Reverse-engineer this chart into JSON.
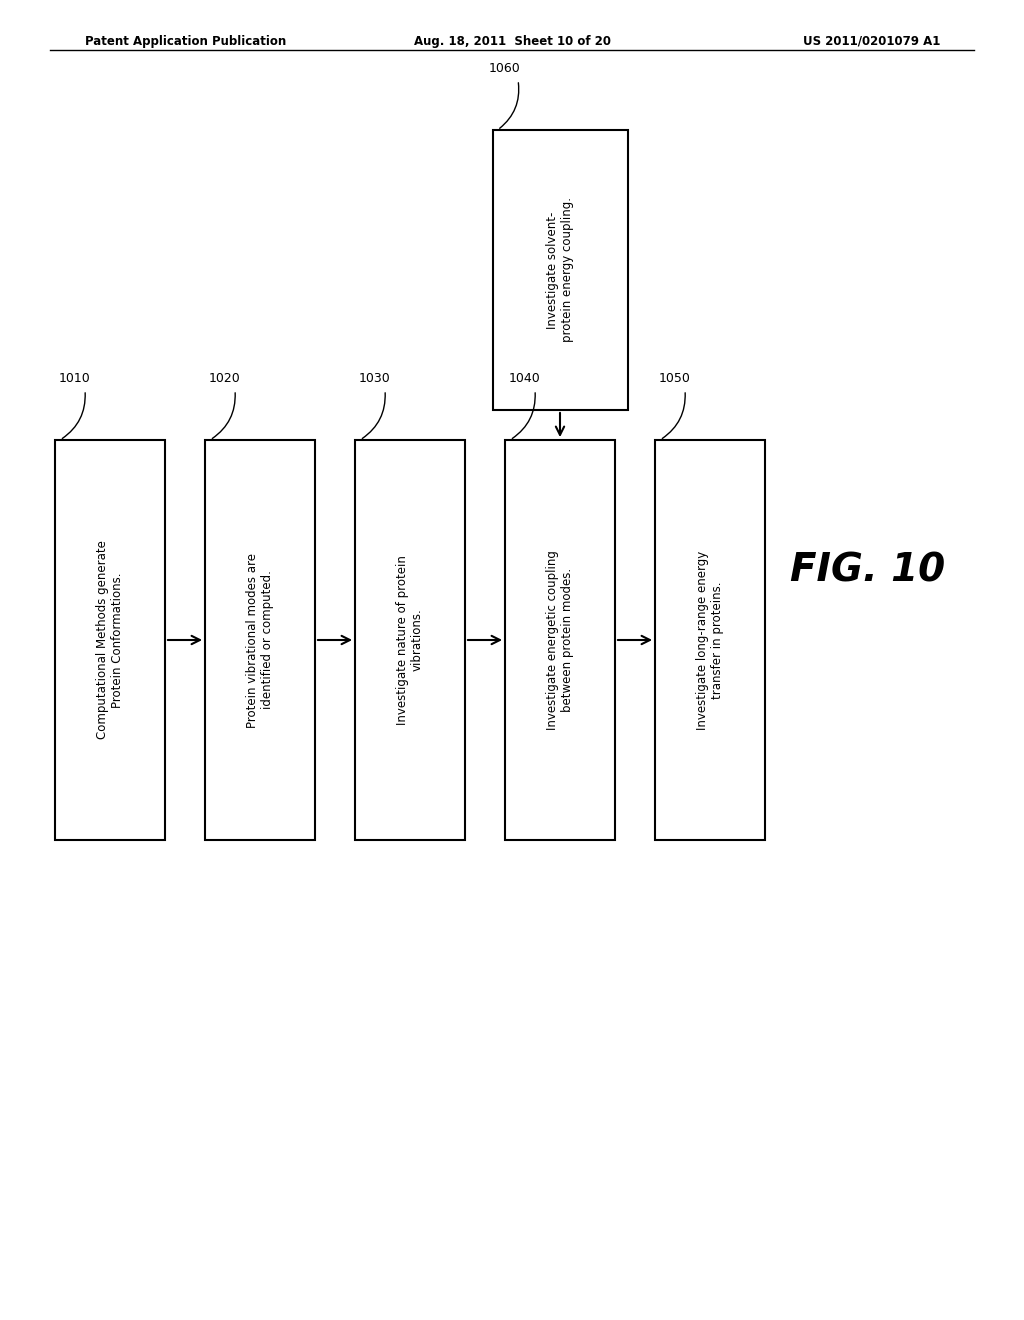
{
  "title_left": "Patent Application Publication",
  "title_mid": "Aug. 18, 2011  Sheet 10 of 20",
  "title_right": "US 2011/0201079 A1",
  "fig_label": "FIG. 10",
  "background_color": "#ffffff",
  "box_edge_color": "#000000",
  "box_face_color": "#ffffff",
  "text_color": "#000000",
  "main_boxes": [
    {
      "id": "1010",
      "label": "1010",
      "text": "Computational Methods generate\nProtein Conformations."
    },
    {
      "id": "1020",
      "label": "1020",
      "text": "Protein vibrational modes are\nidentified or computed."
    },
    {
      "id": "1030",
      "label": "1030",
      "text": "Investigate nature of protein\nvibrations."
    },
    {
      "id": "1040",
      "label": "1040",
      "text": "Investigate energetic coupling\nbetween protein modes."
    },
    {
      "id": "1050",
      "label": "1050",
      "text": "Investigate long-range energy\ntransfer in proteins."
    }
  ],
  "top_box": {
    "id": "1060",
    "label": "1060",
    "text": "Investigate solvent-\nprotein energy coupling."
  }
}
